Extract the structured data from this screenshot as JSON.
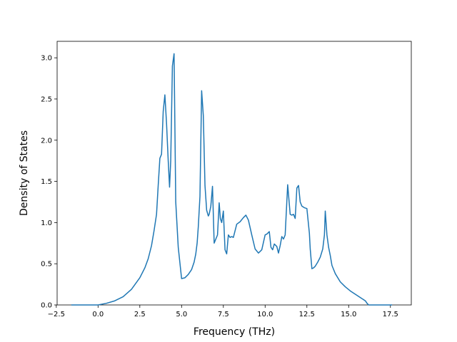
{
  "chart_data": {
    "type": "line",
    "title": "",
    "xlabel": "Frequency (THz)",
    "ylabel": "Density of States",
    "xlim": [
      -2.45,
      18.75
    ],
    "ylim": [
      0.0,
      3.2
    ],
    "xticks": [
      -2.5,
      0.0,
      2.5,
      5.0,
      7.5,
      10.0,
      12.5,
      15.0,
      17.5
    ],
    "xtick_labels": [
      "−2.5",
      "0.0",
      "2.5",
      "5.0",
      "7.5",
      "10.0",
      "12.5",
      "15.0",
      "17.5"
    ],
    "yticks": [
      0.0,
      0.5,
      1.0,
      1.5,
      2.0,
      2.5,
      3.0
    ],
    "ytick_labels": [
      "0.0",
      "0.5",
      "1.0",
      "1.5",
      "2.0",
      "2.5",
      "3.0"
    ],
    "grid": false,
    "legend": "none",
    "color": "#1f77b4",
    "series": [
      {
        "x": [
          -1.6,
          -1.0,
          -0.5,
          0.0,
          0.5,
          1.0,
          1.5,
          2.0,
          2.5,
          2.8,
          3.0,
          3.2,
          3.35,
          3.5,
          3.6,
          3.7,
          3.8,
          3.9,
          4.0,
          4.1,
          4.2,
          4.28,
          4.35,
          4.45,
          4.55,
          4.65,
          4.8,
          5.0,
          5.2,
          5.4,
          5.6,
          5.75,
          5.85,
          5.93,
          6.0,
          6.1,
          6.2,
          6.3,
          6.4,
          6.5,
          6.6,
          6.65,
          6.75,
          6.85,
          6.95,
          7.05,
          7.15,
          7.25,
          7.32,
          7.4,
          7.5,
          7.6,
          7.7,
          7.8,
          7.9,
          8.0,
          8.1,
          8.3,
          8.5,
          8.7,
          8.85,
          9.0,
          9.2,
          9.4,
          9.6,
          9.8,
          10.0,
          10.1,
          10.15,
          10.25,
          10.35,
          10.45,
          10.55,
          10.7,
          10.8,
          10.9,
          11.0,
          11.1,
          11.2,
          11.35,
          11.5,
          11.6,
          11.7,
          11.8,
          11.9,
          12.0,
          12.1,
          12.2,
          12.35,
          12.5,
          12.65,
          12.7,
          12.8,
          12.9,
          13.0,
          13.15,
          13.3,
          13.45,
          13.55,
          13.6,
          13.7,
          13.8,
          13.9,
          14.0,
          14.2,
          14.5,
          14.8,
          15.1,
          15.4,
          15.7,
          16.0,
          16.1,
          16.2,
          16.5,
          17.0,
          17.6
        ],
        "y": [
          0.0,
          0.0,
          0.0,
          0.0,
          0.02,
          0.05,
          0.1,
          0.19,
          0.33,
          0.45,
          0.56,
          0.72,
          0.9,
          1.1,
          1.45,
          1.78,
          1.83,
          2.35,
          2.55,
          2.2,
          1.75,
          1.43,
          1.75,
          2.9,
          3.05,
          1.25,
          0.7,
          0.32,
          0.33,
          0.37,
          0.43,
          0.52,
          0.62,
          0.75,
          0.95,
          1.32,
          2.6,
          2.3,
          1.45,
          1.15,
          1.08,
          1.1,
          1.2,
          1.44,
          0.75,
          0.8,
          0.85,
          1.24,
          1.05,
          1.0,
          1.14,
          0.67,
          0.62,
          0.85,
          0.82,
          0.83,
          0.82,
          0.98,
          1.01,
          1.06,
          1.09,
          1.03,
          0.85,
          0.68,
          0.63,
          0.67,
          0.85,
          0.86,
          0.87,
          0.89,
          0.7,
          0.67,
          0.74,
          0.71,
          0.63,
          0.72,
          0.83,
          0.8,
          0.85,
          1.46,
          1.1,
          1.09,
          1.1,
          1.05,
          1.42,
          1.45,
          1.25,
          1.2,
          1.18,
          1.17,
          0.87,
          0.68,
          0.44,
          0.45,
          0.47,
          0.52,
          0.58,
          0.68,
          0.85,
          1.14,
          0.85,
          0.7,
          0.6,
          0.48,
          0.38,
          0.28,
          0.22,
          0.17,
          0.13,
          0.09,
          0.05,
          0.02,
          0.0,
          0.0,
          0.0,
          0.0
        ]
      }
    ]
  }
}
